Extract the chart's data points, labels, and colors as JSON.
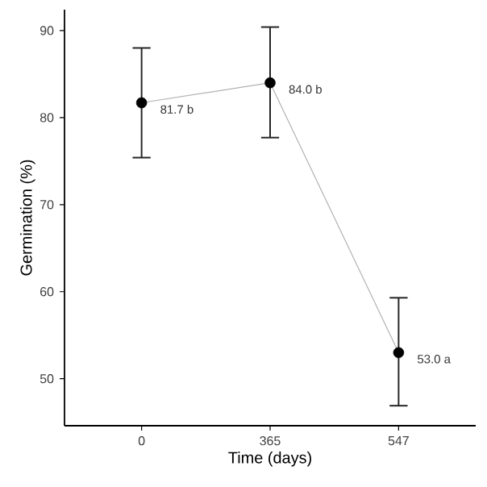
{
  "chart_data": {
    "type": "line",
    "xlabel": "Time (days)",
    "ylabel": "Germination (%)",
    "categories": [
      "0",
      "365",
      "547"
    ],
    "series": [
      {
        "color": "#000000",
        "values": [
          81.7,
          84.0,
          53.0
        ],
        "errors": [
          [
            75.4,
            88.0
          ],
          [
            77.7,
            90.4
          ],
          [
            46.9,
            59.3
          ]
        ],
        "value_labels": [
          "81.7 b",
          "84.0 b",
          "53.0 a"
        ]
      }
    ],
    "ylim": [
      44.6,
      92.4
    ],
    "yticks": [
      50,
      60,
      70,
      80,
      90
    ],
    "marker": "circle",
    "line_style": "solid"
  }
}
